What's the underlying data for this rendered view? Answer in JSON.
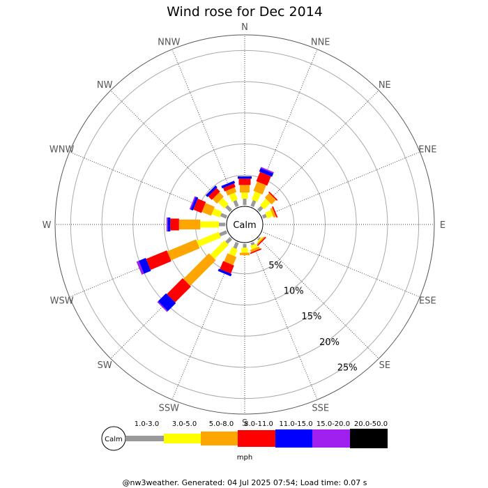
{
  "chart_data": {
    "type": "wind-rose",
    "title": "Wind rose for Dec 2014",
    "directions": [
      "N",
      "NNE",
      "NE",
      "ENE",
      "E",
      "ESE",
      "SE",
      "SSE",
      "S",
      "SSW",
      "SW",
      "WSW",
      "W",
      "WNW",
      "NW",
      "NNW"
    ],
    "ring_labels": [
      "5%",
      "10%",
      "15%",
      "20%",
      "25%"
    ],
    "rings": [
      5,
      10,
      15,
      20,
      25
    ],
    "max_percent": 27.5,
    "calm_label": "Calm",
    "unit": "mph",
    "bins": [
      {
        "label": "1.0-3.0",
        "color": "#999999"
      },
      {
        "label": "3.0-5.0",
        "color": "#ffff00"
      },
      {
        "label": "5.0-8.0",
        "color": "#ffa500"
      },
      {
        "label": "8.0-11.0",
        "color": "#ff0000"
      },
      {
        "label": "11.0-15.0",
        "color": "#0000ff"
      },
      {
        "label": "15.0-20.0",
        "color": "#a020f0"
      },
      {
        "label": "20.0-50.0",
        "color": "#000000"
      }
    ],
    "series_by_direction": [
      {
        "direction": "N",
        "values": [
          1.0,
          1.0,
          1.2,
          1.0,
          0.4,
          0,
          0
        ]
      },
      {
        "direction": "NNE",
        "values": [
          1.0,
          1.4,
          1.6,
          1.6,
          0.6,
          0.2,
          0
        ]
      },
      {
        "direction": "NE",
        "values": [
          0.8,
          1.4,
          1.0,
          0.2,
          0,
          0,
          0
        ]
      },
      {
        "direction": "ENE",
        "values": [
          0.6,
          1.0,
          0.4,
          0.2,
          0,
          0,
          0
        ]
      },
      {
        "direction": "E",
        "values": [
          0,
          0,
          0,
          0,
          0,
          0,
          0
        ]
      },
      {
        "direction": "ESE",
        "values": [
          0,
          0,
          0,
          0,
          0,
          0,
          0
        ]
      },
      {
        "direction": "SE",
        "values": [
          0.2,
          0.2,
          0.2,
          0.2,
          0,
          0,
          0
        ]
      },
      {
        "direction": "SSE",
        "values": [
          0.4,
          0.6,
          0.4,
          0.2,
          0,
          0,
          0
        ]
      },
      {
        "direction": "S",
        "values": [
          0.6,
          0.8,
          0.4,
          0,
          0,
          0,
          0
        ]
      },
      {
        "direction": "SSW",
        "values": [
          1.0,
          1.2,
          1.4,
          1.4,
          0.4,
          0,
          0
        ]
      },
      {
        "direction": "SW",
        "values": [
          1.0,
          3.2,
          5.8,
          3.6,
          1.8,
          0.2,
          0
        ]
      },
      {
        "direction": "WSW",
        "values": [
          1.2,
          3.8,
          5.0,
          3.6,
          1.2,
          0.4,
          0
        ]
      },
      {
        "direction": "W",
        "values": [
          1.0,
          3.0,
          3.4,
          1.4,
          0.4,
          0.2,
          0
        ]
      },
      {
        "direction": "WNW",
        "values": [
          1.0,
          1.4,
          1.6,
          1.4,
          0.4,
          0.2,
          0
        ]
      },
      {
        "direction": "NW",
        "values": [
          1.0,
          1.4,
          1.0,
          0.8,
          0.4,
          0,
          0
        ]
      },
      {
        "direction": "NNW",
        "values": [
          1.0,
          1.2,
          0.8,
          0.6,
          0.4,
          0,
          0
        ]
      }
    ],
    "footer": "@nw3weather. Generated: 04 Jul 2025 07:54; Load time: 0.07 s"
  }
}
